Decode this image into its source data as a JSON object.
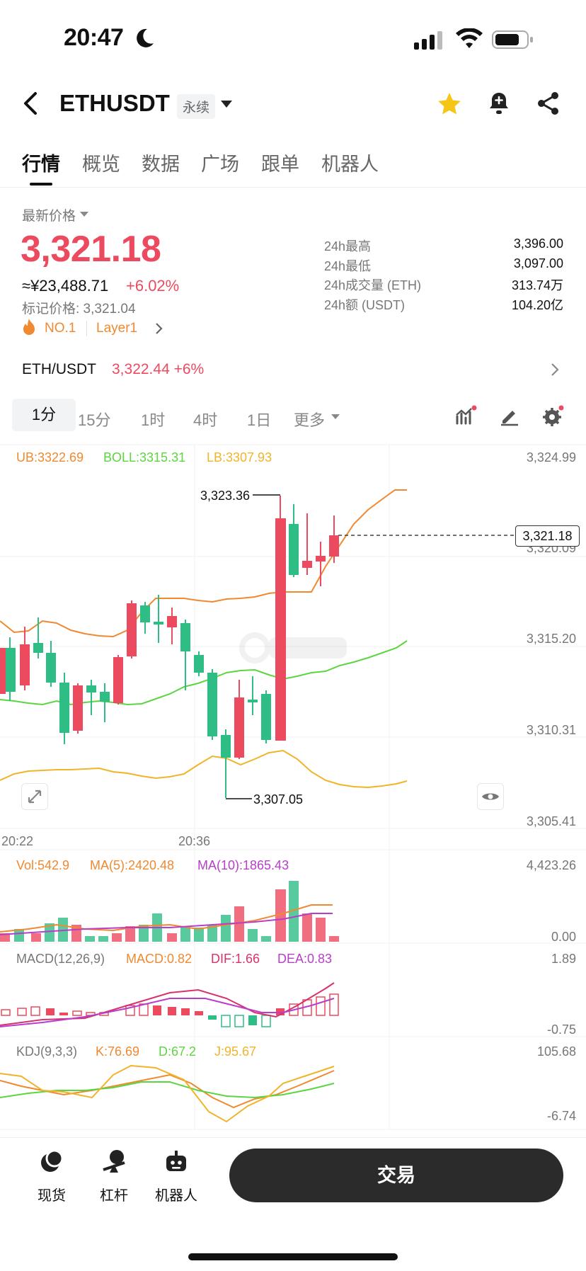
{
  "status_bar": {
    "time": "20:47"
  },
  "header": {
    "pair": "ETHUSDT",
    "tag": "永续"
  },
  "tabs": [
    "行情",
    "概览",
    "数据",
    "广场",
    "跟单",
    "机器人"
  ],
  "price_panel": {
    "latest_label": "最新价格",
    "price": "3,321.18",
    "cny": "≈¥23,488.71",
    "change": "+6.02%",
    "mark_price": "标记价格: 3,321.04",
    "rank": "NO.1",
    "sector": "Layer1",
    "stats": [
      {
        "label": "24h最高",
        "value": "3,396.00"
      },
      {
        "label": "24h最低",
        "value": "3,097.00"
      },
      {
        "label": "24h成交量 (ETH)",
        "value": "313.74万"
      },
      {
        "label": "24h额 (USDT)",
        "value": "104.20亿"
      }
    ]
  },
  "spot_row": {
    "pair": "ETH/USDT",
    "price": "3,322.44",
    "change": "+6%"
  },
  "timeframes": [
    "1分",
    "15分",
    "1时",
    "4时",
    "1日",
    "更多"
  ],
  "chart": {
    "boll": {
      "ub": "UB:3322.69",
      "boll": "BOLL:3315.31",
      "lb": "LB:3307.93"
    },
    "price_axis": [
      "3,324.99",
      "3,320.09",
      "3,315.20",
      "3,310.31",
      "3,305.41"
    ],
    "last_price_tag": "3,321.18",
    "high_annot": "3,323.36",
    "low_annot": "3,307.05",
    "time_axis": [
      "20:22",
      "20:36"
    ],
    "vol": {
      "vol": "Vol:542.9",
      "ma5": "MA(5):2420.48",
      "ma10": "MA(10):1865.43",
      "axis": [
        "4,423.26",
        "0.00"
      ]
    },
    "macd": {
      "name": "MACD(12,26,9)",
      "macd": "MACD:0.82",
      "dif": "DIF:1.66",
      "dea": "DEA:0.83",
      "axis": [
        "1.89",
        "-0.75"
      ]
    },
    "kdj": {
      "name": "KDJ(9,3,3)",
      "k": "K:76.69",
      "d": "D:67.2",
      "j": "J:95.67",
      "axis": [
        "105.68",
        "-6.74"
      ]
    },
    "colors": {
      "up": "#ec4a5f",
      "down": "#2ebd85",
      "ub": "#f0892f",
      "boll": "#5cd640",
      "lb": "#f0b429",
      "macd_line": "#d6336c",
      "dea": "#b83ec9"
    }
  },
  "bottom_nav": {
    "items": [
      "现货",
      "杠杆",
      "机器人"
    ],
    "trade": "交易"
  }
}
